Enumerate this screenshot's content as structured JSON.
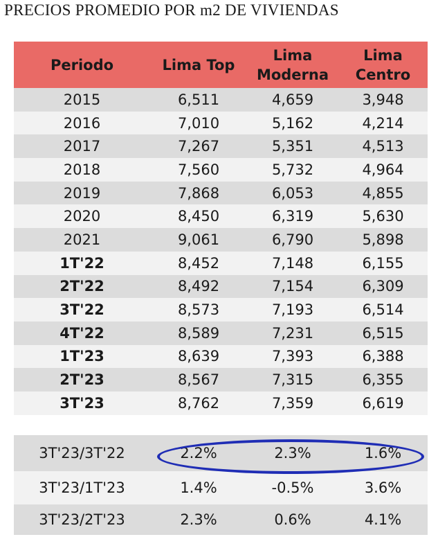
{
  "title": "PRECIOS PROMEDIO POR m2  DE VIVIENDAS",
  "header": {
    "periodo": "Periodo",
    "lima_top": "Lima Top",
    "lima_moderna_1": "Lima",
    "lima_moderna_2": "Moderna",
    "lima_centro_1": "Lima",
    "lima_centro_2": "Centro"
  },
  "rows": [
    {
      "periodo": "2015",
      "top": "6,511",
      "moderna": "4,659",
      "centro": "3,948"
    },
    {
      "periodo": "2016",
      "top": "7,010",
      "moderna": "5,162",
      "centro": "4,214"
    },
    {
      "periodo": "2017",
      "top": "7,267",
      "moderna": "5,351",
      "centro": "4,513"
    },
    {
      "periodo": "2018",
      "top": "7,560",
      "moderna": "5,732",
      "centro": "4,964"
    },
    {
      "periodo": "2019",
      "top": "7,868",
      "moderna": "6,053",
      "centro": "4,855"
    },
    {
      "periodo": "2020",
      "top": "8,450",
      "moderna": "6,319",
      "centro": "5,630"
    },
    {
      "periodo": "2021",
      "top": "9,061",
      "moderna": "6,790",
      "centro": "5,898"
    },
    {
      "periodo": "1T'22",
      "top": "8,452",
      "moderna": "7,148",
      "centro": "6,155"
    },
    {
      "periodo": "2T'22",
      "top": "8,492",
      "moderna": "7,154",
      "centro": "6,309"
    },
    {
      "periodo": "3T'22",
      "top": "8,573",
      "moderna": "7,193",
      "centro": "6,514"
    },
    {
      "periodo": "4T'22",
      "top": "8,589",
      "moderna": "7,231",
      "centro": "6,515"
    },
    {
      "periodo": "1T'23",
      "top": "8,639",
      "moderna": "7,393",
      "centro": "6,388"
    },
    {
      "periodo": "2T'23",
      "top": "8,567",
      "moderna": "7,315",
      "centro": "6,355"
    },
    {
      "periodo": "3T'23",
      "top": "8,762",
      "moderna": "7,359",
      "centro": "6,619"
    }
  ],
  "summary": [
    {
      "label": "3T'23/3T'22",
      "top": "2.2%",
      "moderna": "2.3%",
      "centro": "1.6%"
    },
    {
      "label": "3T'23/1T'23",
      "top": "1.4%",
      "moderna": "-0.5%",
      "centro": "3.6%"
    },
    {
      "label": "3T'23/2T'23",
      "top": "2.3%",
      "moderna": "0.6%",
      "centro": "4.1%"
    }
  ],
  "highlight_color": "#1f2db5",
  "header_color": "#e96a66"
}
